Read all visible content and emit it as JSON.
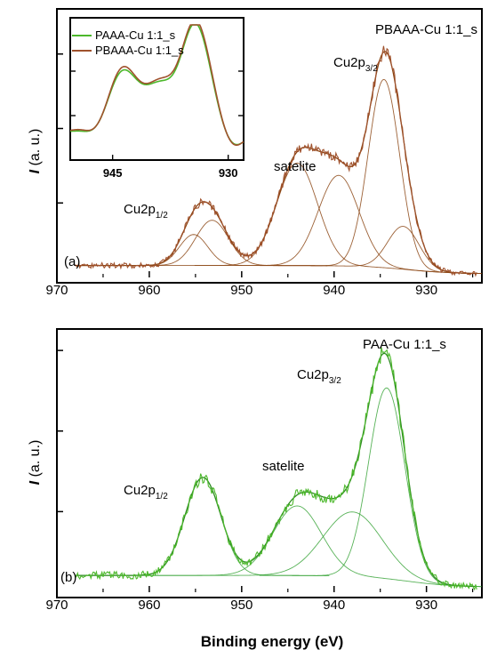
{
  "figure": {
    "xlabel": "Binding energy (eV)",
    "ylabel": "I (a. u.)"
  },
  "chart_data": [
    {
      "panel_label": "(a)",
      "type": "line",
      "title": "PBAAA-Cu 1:1_s",
      "xlim": [
        970,
        924
      ],
      "x_reversed": true,
      "x_ticks": [
        970,
        960,
        950,
        940,
        930
      ],
      "peak_labels": [
        {
          "label": "Cu2p",
          "subscript": "1/2",
          "x": 954
        },
        {
          "label": "satelite",
          "subscript": "",
          "x": 944
        },
        {
          "label": "Cu2p",
          "subscript": "3/2",
          "x": 934
        }
      ],
      "colors": {
        "data": "#a0522d",
        "fit": "#8b4513",
        "components": "#8b4513"
      },
      "components": [
        {
          "center": 934.6,
          "height": 0.79,
          "fwhm": 4.0
        },
        {
          "center": 932.5,
          "height": 0.18,
          "fwhm": 4.0
        },
        {
          "center": 939.5,
          "height": 0.38,
          "fwhm": 5.2
        },
        {
          "center": 944.0,
          "height": 0.43,
          "fwhm": 5.2
        },
        {
          "center": 953.2,
          "height": 0.19,
          "fwhm": 4.2
        },
        {
          "center": 955.2,
          "height": 0.13,
          "fwhm": 3.6
        }
      ],
      "background": {
        "low": 0.015,
        "high": 0.05
      },
      "inset": {
        "x_ticks": [
          945,
          930
        ],
        "xlim": [
          950.5,
          928
        ],
        "legend": [
          {
            "name": "PAAA-Cu 1:1_s",
            "color": "#4cb82b"
          },
          {
            "name": "PBAAA-Cu 1:1_s",
            "color": "#a0522d"
          }
        ]
      }
    },
    {
      "panel_label": "(b)",
      "type": "line",
      "title": "PAA-Cu 1:1_s",
      "xlim": [
        970,
        924
      ],
      "x_reversed": true,
      "x_ticks": [
        970,
        960,
        950,
        940,
        930
      ],
      "peak_labels": [
        {
          "label": "Cu2p",
          "subscript": "1/2",
          "x": 955
        },
        {
          "label": "satelite",
          "subscript": "",
          "x": 943
        },
        {
          "label": "Cu2p",
          "subscript": "3/2",
          "x": 934
        }
      ],
      "colors": {
        "data": "#4cb82b",
        "fit": "#2e8b22",
        "components": "#3aa43a"
      },
      "components": [
        {
          "center": 934.3,
          "height": 0.74,
          "fwhm": 4.6
        },
        {
          "center": 938.0,
          "height": 0.25,
          "fwhm": 7.5
        },
        {
          "center": 944.0,
          "height": 0.27,
          "fwhm": 6.2
        },
        {
          "center": 954.2,
          "height": 0.38,
          "fwhm": 4.6
        }
      ],
      "background": {
        "low": 0.02,
        "high": 0.065
      }
    }
  ]
}
